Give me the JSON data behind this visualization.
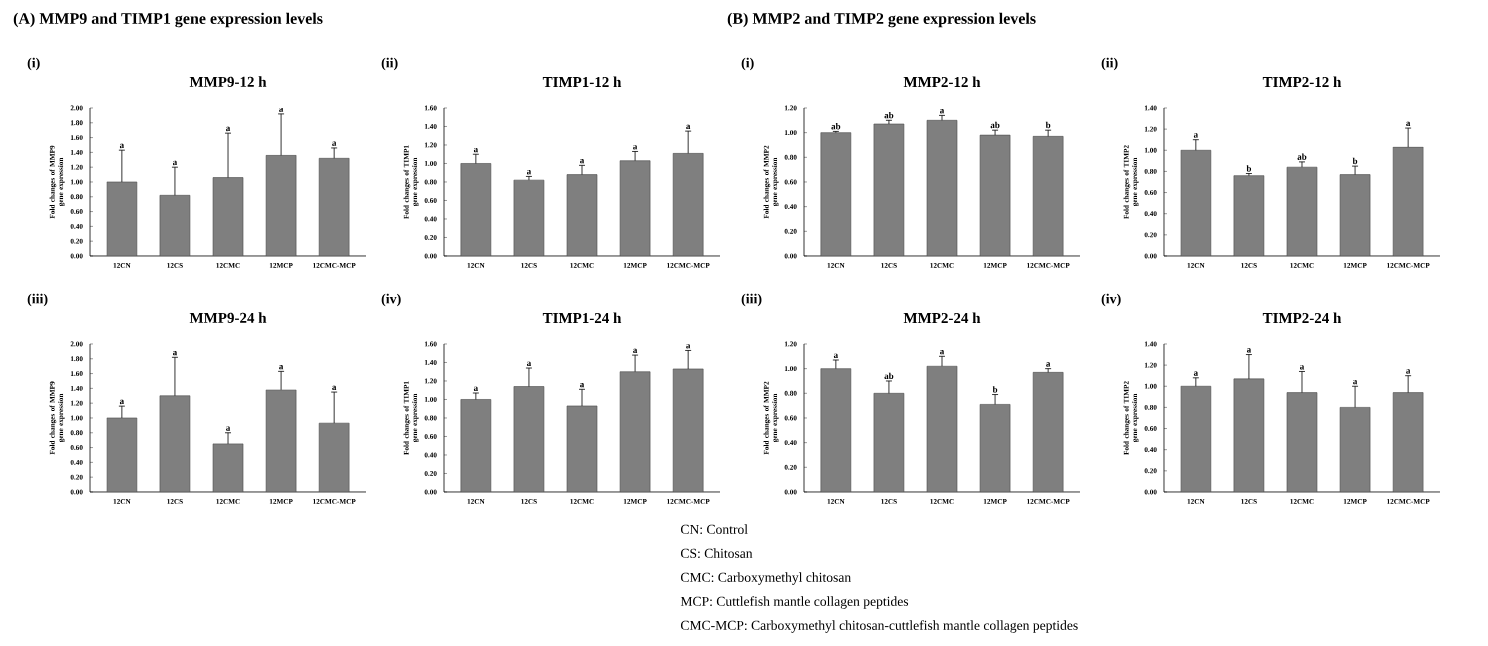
{
  "chart_data": [
    {
      "type": "bar",
      "title": "MMP9-12 h",
      "ylabel": "Fold changes of MMP9 gene expression",
      "annotations": [
        "(A) MMP9 and TIMP1 gene expression levels",
        "(i)",
        {
          "text": "a",
          "x": "12CN",
          "y": 1.43
        },
        {
          "text": "a",
          "x": "12CS",
          "y": 1.2
        },
        {
          "text": "a",
          "x": "12CMC",
          "y": 1.66
        },
        {
          "text": "a",
          "x": "12MCP",
          "y": 1.92
        },
        {
          "text": "a",
          "x": "12CMC-MCP",
          "y": 1.46
        }
      ],
      "categories": [
        "12CN",
        "12CS",
        "12CMC",
        "12MCP",
        "12CMC-MCP"
      ],
      "values": [
        1.0,
        0.82,
        1.06,
        1.36,
        1.32
      ],
      "errors": [
        [
          1.0,
          1.43
        ],
        [
          0.82,
          1.2
        ],
        [
          1.06,
          1.66
        ],
        [
          1.36,
          1.92
        ],
        [
          1.32,
          1.46
        ]
      ],
      "color": "#7f7f7f",
      "ylim": [
        0,
        2
      ],
      "yticks": [
        {
          "value": 0,
          "label": "0.00"
        },
        {
          "value": 0.2,
          "label": "0.20"
        },
        {
          "value": 0.4,
          "label": "0.40"
        },
        {
          "value": 0.6,
          "label": "0.60"
        },
        {
          "value": 0.8,
          "label": "0.80"
        },
        {
          "value": 1.0,
          "label": "1.00"
        },
        {
          "value": 1.2,
          "label": "1.20"
        },
        {
          "value": 1.4,
          "label": "1.40"
        },
        {
          "value": 1.6,
          "label": "1.60"
        },
        {
          "value": 1.8,
          "label": "1.80"
        },
        {
          "value": 2.0,
          "label": "2.00"
        }
      ]
    },
    {
      "type": "bar",
      "title": "TIMP1-12 h",
      "ylabel": "Fold changes of TIMP1 gene expression",
      "annotations": [
        "(ii)",
        {
          "text": "a",
          "x": "12CN",
          "y": 1.1
        },
        {
          "text": "a",
          "x": "12CS",
          "y": 0.86
        },
        {
          "text": "a",
          "x": "12CMC",
          "y": 0.98
        },
        {
          "text": "a",
          "x": "12MCP",
          "y": 1.13
        },
        {
          "text": "a",
          "x": "12CMC-MCP",
          "y": 1.35
        }
      ],
      "categories": [
        "12CN",
        "12CS",
        "12CMC",
        "12MCP",
        "12CMC-MCP"
      ],
      "values": [
        1.0,
        0.82,
        0.88,
        1.03,
        1.11
      ],
      "errors": [
        [
          1.0,
          1.1
        ],
        [
          0.82,
          0.86
        ],
        [
          0.88,
          0.98
        ],
        [
          1.03,
          1.13
        ],
        [
          1.11,
          1.35
        ]
      ],
      "color": "#7f7f7f",
      "ylim": [
        0,
        1.6
      ],
      "yticks": [
        {
          "value": 0,
          "label": "0.00"
        },
        {
          "value": 0.2,
          "label": "0.20"
        },
        {
          "value": 0.4,
          "label": "0.40"
        },
        {
          "value": 0.6,
          "label": "0.60"
        },
        {
          "value": 0.8,
          "label": "0.80"
        },
        {
          "value": 1.0,
          "label": "1.00"
        },
        {
          "value": 1.2,
          "label": "1.20"
        },
        {
          "value": 1.4,
          "label": "1.40"
        },
        {
          "value": 1.6,
          "label": "1.60"
        }
      ]
    },
    {
      "type": "bar",
      "title": "MMP9-24 h",
      "ylabel": "Fold changes of MMP9 gene expression",
      "annotations": [
        "(iii)",
        {
          "text": "a",
          "x": "12CN",
          "y": 1.16
        },
        {
          "text": "a",
          "x": "12CS",
          "y": 1.82
        },
        {
          "text": "a",
          "x": "12CMC",
          "y": 0.8
        },
        {
          "text": "a",
          "x": "12MCP",
          "y": 1.63
        },
        {
          "text": "a",
          "x": "12CMC-MCP",
          "y": 1.35
        }
      ],
      "categories": [
        "12CN",
        "12CS",
        "12CMC",
        "12MCP",
        "12CMC-MCP"
      ],
      "values": [
        1.0,
        1.3,
        0.65,
        1.38,
        0.93
      ],
      "errors": [
        [
          1.0,
          1.16
        ],
        [
          1.3,
          1.82
        ],
        [
          0.65,
          0.8
        ],
        [
          1.38,
          1.63
        ],
        [
          0.93,
          1.35
        ]
      ],
      "color": "#7f7f7f",
      "ylim": [
        0,
        2
      ],
      "yticks": [
        {
          "value": 0,
          "label": "0.00"
        },
        {
          "value": 0.2,
          "label": "0.20"
        },
        {
          "value": 0.4,
          "label": "0.40"
        },
        {
          "value": 0.6,
          "label": "0.60"
        },
        {
          "value": 0.8,
          "label": "0.80"
        },
        {
          "value": 1.0,
          "label": "1.00"
        },
        {
          "value": 1.2,
          "label": "1.20"
        },
        {
          "value": 1.4,
          "label": "1.40"
        },
        {
          "value": 1.6,
          "label": "1.60"
        },
        {
          "value": 1.8,
          "label": "1.80"
        },
        {
          "value": 2.0,
          "label": "2.00"
        }
      ]
    },
    {
      "type": "bar",
      "title": "TIMP1-24 h",
      "ylabel": "Fold changes of TIMP1 gene expression",
      "annotations": [
        "(iv)",
        {
          "text": "a",
          "x": "12CN",
          "y": 1.07
        },
        {
          "text": "a",
          "x": "12CS",
          "y": 1.34
        },
        {
          "text": "a",
          "x": "12CMC",
          "y": 1.11
        },
        {
          "text": "a",
          "x": "12MCP",
          "y": 1.48
        },
        {
          "text": "a",
          "x": "12CMC-MCP",
          "y": 1.53
        }
      ],
      "categories": [
        "12CN",
        "12CS",
        "12CMC",
        "12MCP",
        "12CMC-MCP"
      ],
      "values": [
        1.0,
        1.14,
        0.93,
        1.3,
        1.33
      ],
      "errors": [
        [
          1.0,
          1.07
        ],
        [
          1.14,
          1.34
        ],
        [
          0.93,
          1.11
        ],
        [
          1.3,
          1.48
        ],
        [
          1.33,
          1.53
        ]
      ],
      "color": "#7f7f7f",
      "ylim": [
        0,
        1.6
      ],
      "yticks": [
        {
          "value": 0,
          "label": "0.00"
        },
        {
          "value": 0.2,
          "label": "0.20"
        },
        {
          "value": 0.4,
          "label": "0.40"
        },
        {
          "value": 0.6,
          "label": "0.60"
        },
        {
          "value": 0.8,
          "label": "0.80"
        },
        {
          "value": 1.0,
          "label": "1.00"
        },
        {
          "value": 1.2,
          "label": "1.20"
        },
        {
          "value": 1.4,
          "label": "1.40"
        },
        {
          "value": 1.6,
          "label": "1.60"
        }
      ]
    },
    {
      "type": "bar",
      "title": "MMP2-12 h",
      "ylabel": "Fold changes of MMP2 gene expression",
      "annotations": [
        "(B) MMP2 and TIMP2 gene expression levels",
        "(i)",
        {
          "text": "ab",
          "x": "12CN",
          "y": 1.01
        },
        {
          "text": "ab",
          "x": "12CS",
          "y": 1.1
        },
        {
          "text": "a",
          "x": "12CMC",
          "y": 1.14
        },
        {
          "text": "ab",
          "x": "12MCP",
          "y": 1.02
        },
        {
          "text": "b",
          "x": "12CMC-MCP",
          "y": 1.02
        }
      ],
      "categories": [
        "12CN",
        "12CS",
        "12CMC",
        "12MCP",
        "12CMC-MCP"
      ],
      "values": [
        1.0,
        1.07,
        1.1,
        0.98,
        0.97
      ],
      "errors": [
        [
          1.0,
          1.01
        ],
        [
          1.07,
          1.1
        ],
        [
          1.1,
          1.14
        ],
        [
          0.98,
          1.02
        ],
        [
          0.97,
          1.02
        ]
      ],
      "color": "#7f7f7f",
      "ylim": [
        0,
        1.2
      ],
      "yticks": [
        {
          "value": 0,
          "label": "0.00"
        },
        {
          "value": 0.2,
          "label": "0.20"
        },
        {
          "value": 0.4,
          "label": "0.40"
        },
        {
          "value": 0.6,
          "label": "0.60"
        },
        {
          "value": 0.8,
          "label": "0.80"
        },
        {
          "value": 1.0,
          "label": "1.00"
        },
        {
          "value": 1.2,
          "label": "1.20"
        }
      ]
    },
    {
      "type": "bar",
      "title": "TIMP2-12 h",
      "ylabel": "Fold changes of TIMP2 gene expression",
      "annotations": [
        "(ii)",
        {
          "text": "a",
          "x": "12CN",
          "y": 1.1
        },
        {
          "text": "b",
          "x": "12CS",
          "y": 0.78
        },
        {
          "text": "ab",
          "x": "12CMC",
          "y": 0.89
        },
        {
          "text": "b",
          "x": "12MCP",
          "y": 0.85
        },
        {
          "text": "a",
          "x": "12CMC-MCP",
          "y": 1.21
        }
      ],
      "categories": [
        "12CN",
        "12CS",
        "12CMC",
        "12MCP",
        "12CMC-MCP"
      ],
      "values": [
        1.0,
        0.76,
        0.84,
        0.77,
        1.03
      ],
      "errors": [
        [
          1.0,
          1.1
        ],
        [
          0.76,
          0.78
        ],
        [
          0.84,
          0.89
        ],
        [
          0.77,
          0.85
        ],
        [
          1.03,
          1.21
        ]
      ],
      "color": "#7f7f7f",
      "ylim": [
        0,
        1.4
      ],
      "yticks": [
        {
          "value": 0,
          "label": "0.00"
        },
        {
          "value": 0.2,
          "label": "0.20"
        },
        {
          "value": 0.4,
          "label": "0.40"
        },
        {
          "value": 0.6,
          "label": "0.60"
        },
        {
          "value": 0.8,
          "label": "0.80"
        },
        {
          "value": 1.0,
          "label": "1.00"
        },
        {
          "value": 1.2,
          "label": "1.20"
        },
        {
          "value": 1.4,
          "label": "1.40"
        }
      ]
    },
    {
      "type": "bar",
      "title": "MMP2-24 h",
      "ylabel": "Fold changes of MMP2 gene expression",
      "annotations": [
        "(iii)",
        {
          "text": "a",
          "x": "12CN",
          "y": 1.07
        },
        {
          "text": "ab",
          "x": "12CS",
          "y": 0.9
        },
        {
          "text": "a",
          "x": "12CMC",
          "y": 1.1
        },
        {
          "text": "b",
          "x": "12MCP",
          "y": 0.79
        },
        {
          "text": "a",
          "x": "12CMC-MCP",
          "y": 1.0
        }
      ],
      "categories": [
        "12CN",
        "12CS",
        "12CMC",
        "12MCP",
        "12CMC-MCP"
      ],
      "values": [
        1.0,
        0.8,
        1.02,
        0.71,
        0.97
      ],
      "errors": [
        [
          1.0,
          1.07
        ],
        [
          0.8,
          0.9
        ],
        [
          1.02,
          1.1
        ],
        [
          0.71,
          0.79
        ],
        [
          0.97,
          1.0
        ]
      ],
      "color": "#7f7f7f",
      "ylim": [
        0,
        1.2
      ],
      "yticks": [
        {
          "value": 0,
          "label": "0.00"
        },
        {
          "value": 0.2,
          "label": "0.20"
        },
        {
          "value": 0.4,
          "label": "0.40"
        },
        {
          "value": 0.6,
          "label": "0.60"
        },
        {
          "value": 0.8,
          "label": "0.80"
        },
        {
          "value": 1.0,
          "label": "1.00"
        },
        {
          "value": 1.2,
          "label": "1.20"
        }
      ]
    },
    {
      "type": "bar",
      "title": "TIMP2-24 h",
      "ylabel": "Fold changes of TIMP2 gene expression",
      "annotations": [
        "(iv)",
        {
          "text": "a",
          "x": "12CN",
          "y": 1.08
        },
        {
          "text": "a",
          "x": "12CS",
          "y": 1.3
        },
        {
          "text": "a",
          "x": "12CMC",
          "y": 1.14
        },
        {
          "text": "a",
          "x": "12MCP",
          "y": 1.0
        },
        {
          "text": "a",
          "x": "12CMC-MCP",
          "y": 1.1
        }
      ],
      "categories": [
        "12CN",
        "12CS",
        "12CMC",
        "12MCP",
        "12CMC-MCP"
      ],
      "values": [
        1.0,
        1.07,
        0.94,
        0.8,
        0.94
      ],
      "errors": [
        [
          1.0,
          1.08
        ],
        [
          1.07,
          1.3
        ],
        [
          0.94,
          1.14
        ],
        [
          0.8,
          1.0
        ],
        [
          0.94,
          1.1
        ]
      ],
      "color": "#7f7f7f",
      "ylim": [
        0,
        1.4
      ],
      "yticks": [
        {
          "value": 0,
          "label": "0.00"
        },
        {
          "value": 0.2,
          "label": "0.20"
        },
        {
          "value": 0.4,
          "label": "0.40"
        },
        {
          "value": 0.6,
          "label": "0.60"
        },
        {
          "value": 0.8,
          "label": "0.80"
        },
        {
          "value": 1.0,
          "label": "1.00"
        },
        {
          "value": 1.2,
          "label": "1.20"
        },
        {
          "value": 1.4,
          "label": "1.40"
        }
      ]
    },
    {
      "type": "other",
      "annotations": [
        "CN: Control",
        "CS: Chitosan",
        "CMC: Carboxymethyl chitosan",
        "MCP: Cuttlefish mantle collagen peptides",
        "CMC-MCP: Carboxymethyl chitosan-cuttlefish mantle collagen peptides"
      ]
    }
  ]
}
